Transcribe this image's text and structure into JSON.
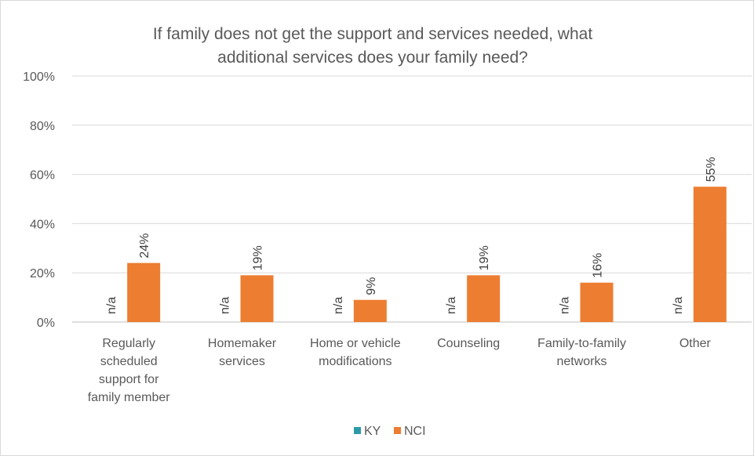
{
  "chart_data": {
    "type": "bar",
    "title": "If family does not get the support and services needed, what additional services does your family need?",
    "title_lines": [
      "If family does not get the support and services needed, what",
      "additional services does your family need?"
    ],
    "categories": [
      [
        "Regularly",
        "scheduled",
        "support for",
        "family member"
      ],
      [
        "Homemaker",
        "services"
      ],
      [
        "Home or vehicle",
        "modifications"
      ],
      [
        "Counseling"
      ],
      [
        "Family-to-family",
        "networks"
      ],
      [
        "Other"
      ]
    ],
    "series": [
      {
        "name": "KY",
        "color": "#2e9aa8",
        "values": [
          null,
          null,
          null,
          null,
          null,
          null
        ],
        "labels": [
          "n/a",
          "n/a",
          "n/a",
          "n/a",
          "n/a",
          "n/a"
        ]
      },
      {
        "name": "NCI",
        "color": "#ed7d31",
        "values": [
          24,
          19,
          9,
          19,
          16,
          55
        ],
        "labels": [
          "24%",
          "19%",
          "9%",
          "19%",
          "16%",
          "55%"
        ]
      }
    ],
    "ylim": [
      0,
      100
    ],
    "yticks": [
      "0%",
      "20%",
      "40%",
      "60%",
      "80%",
      "100%"
    ],
    "grid": true,
    "legend_position": "bottom",
    "xlabel": "",
    "ylabel": ""
  }
}
